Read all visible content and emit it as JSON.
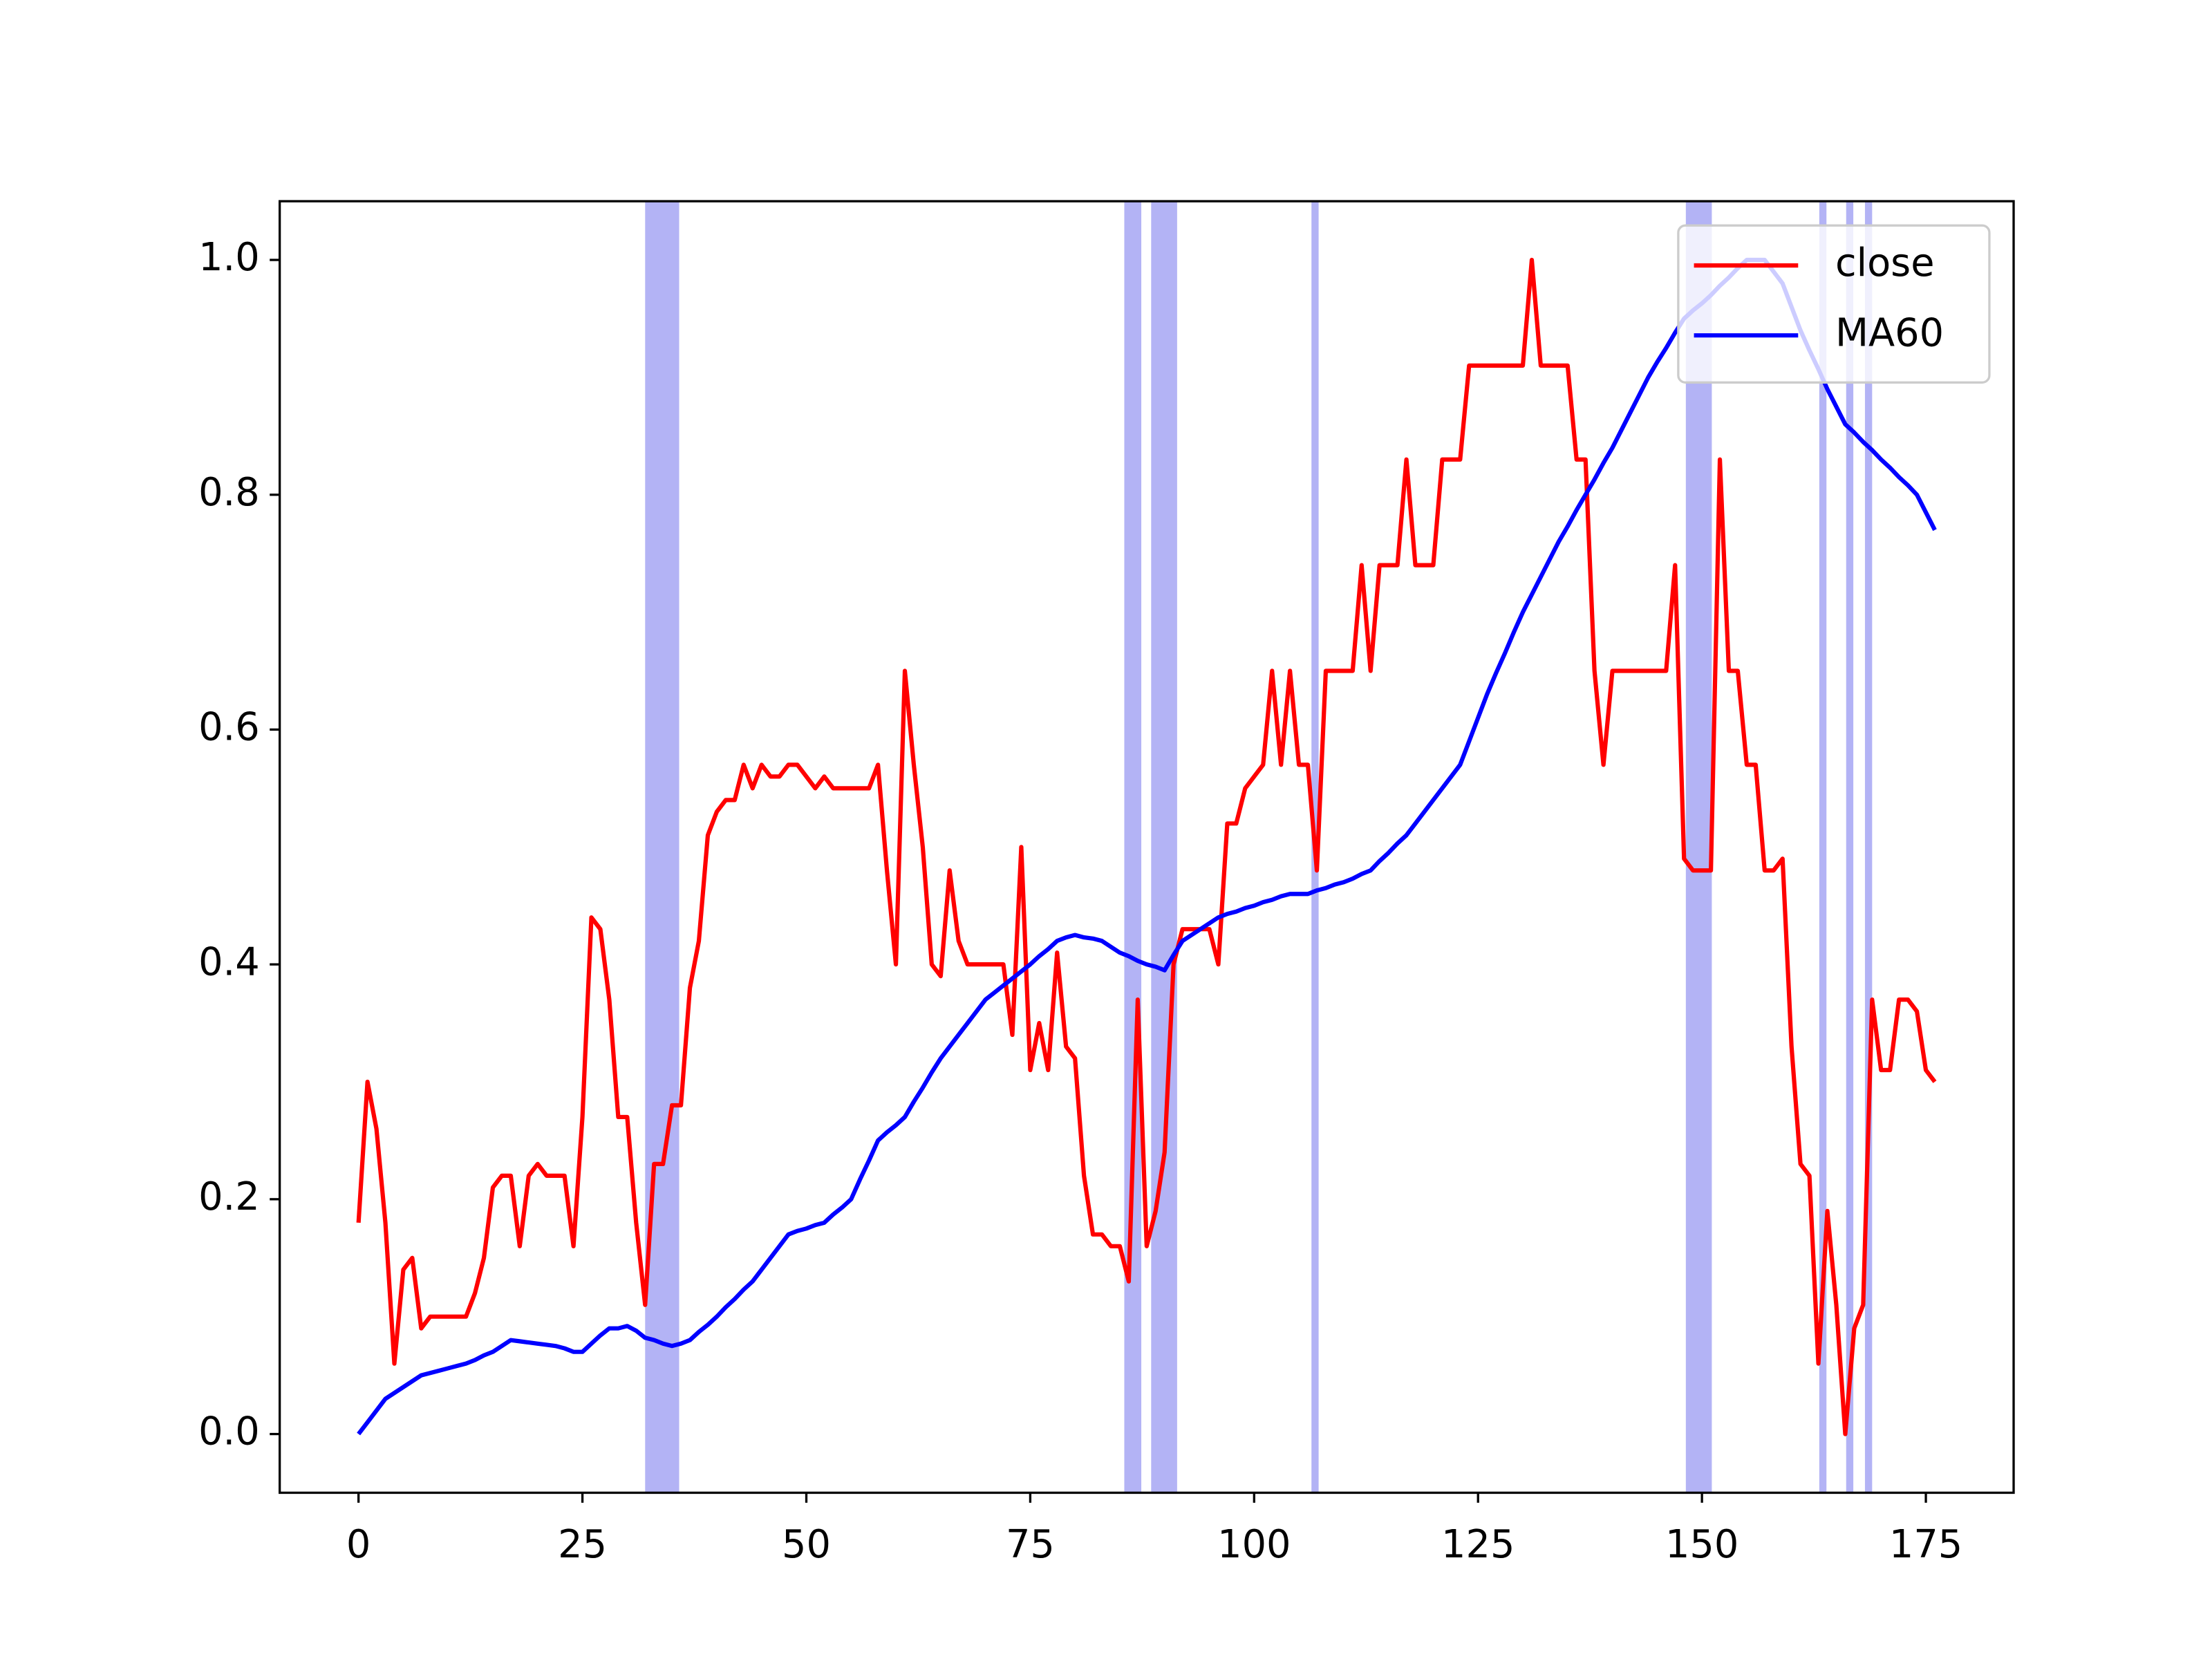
{
  "chart_data": {
    "type": "line",
    "x": [
      0,
      1,
      2,
      3,
      4,
      5,
      6,
      7,
      8,
      9,
      10,
      11,
      12,
      13,
      14,
      15,
      16,
      17,
      18,
      19,
      20,
      21,
      22,
      23,
      24,
      25,
      26,
      27,
      28,
      29,
      30,
      31,
      32,
      33,
      34,
      35,
      36,
      37,
      38,
      39,
      40,
      41,
      42,
      43,
      44,
      45,
      46,
      47,
      48,
      49,
      50,
      51,
      52,
      53,
      54,
      55,
      56,
      57,
      58,
      59,
      60,
      61,
      62,
      63,
      64,
      65,
      66,
      67,
      68,
      69,
      70,
      71,
      72,
      73,
      74,
      75,
      76,
      77,
      78,
      79,
      80,
      81,
      82,
      83,
      84,
      85,
      86,
      87,
      88,
      89,
      90,
      91,
      92,
      93,
      94,
      95,
      96,
      97,
      98,
      99,
      100,
      101,
      102,
      103,
      104,
      105,
      106,
      107,
      108,
      109,
      110,
      111,
      112,
      113,
      114,
      115,
      116,
      117,
      118,
      119,
      120,
      121,
      122,
      123,
      124,
      125,
      126,
      127,
      128,
      129,
      130,
      131,
      132,
      133,
      134,
      135,
      136,
      137,
      138,
      139,
      140,
      141,
      142,
      143,
      144,
      145,
      146,
      147,
      148,
      149,
      150,
      151,
      152,
      153,
      154,
      155,
      156,
      157,
      158,
      159,
      160,
      161,
      162,
      163,
      164,
      165,
      166,
      167,
      168,
      169,
      170,
      171,
      172,
      173,
      174,
      175,
      176
    ],
    "series": [
      {
        "name": "close",
        "color": "#ff0000",
        "values": [
          0.18,
          0.3,
          0.26,
          0.18,
          0.06,
          0.14,
          0.15,
          0.09,
          0.1,
          0.1,
          0.1,
          0.1,
          0.1,
          0.12,
          0.15,
          0.21,
          0.22,
          0.22,
          0.16,
          0.22,
          0.23,
          0.22,
          0.22,
          0.22,
          0.16,
          0.27,
          0.44,
          0.43,
          0.37,
          0.27,
          0.27,
          0.18,
          0.11,
          0.23,
          0.23,
          0.28,
          0.28,
          0.38,
          0.42,
          0.51,
          0.53,
          0.54,
          0.54,
          0.57,
          0.55,
          0.57,
          0.56,
          0.56,
          0.57,
          0.57,
          0.56,
          0.55,
          0.56,
          0.55,
          0.55,
          0.55,
          0.55,
          0.55,
          0.57,
          0.48,
          0.4,
          0.65,
          0.57,
          0.5,
          0.4,
          0.39,
          0.48,
          0.42,
          0.4,
          0.4,
          0.4,
          0.4,
          0.4,
          0.34,
          0.5,
          0.31,
          0.35,
          0.31,
          0.41,
          0.33,
          0.32,
          0.22,
          0.17,
          0.17,
          0.16,
          0.16,
          0.13,
          0.37,
          0.16,
          0.19,
          0.24,
          0.4,
          0.43,
          0.43,
          0.43,
          0.43,
          0.4,
          0.52,
          0.52,
          0.55,
          0.56,
          0.57,
          0.65,
          0.57,
          0.65,
          0.57,
          0.57,
          0.48,
          0.65,
          0.65,
          0.65,
          0.65,
          0.74,
          0.65,
          0.74,
          0.74,
          0.74,
          0.83,
          0.74,
          0.74,
          0.74,
          0.83,
          0.83,
          0.83,
          0.91,
          0.91,
          0.91,
          0.91,
          0.91,
          0.91,
          0.91,
          1.0,
          0.91,
          0.91,
          0.91,
          0.91,
          0.83,
          0.83,
          0.65,
          0.57,
          0.65,
          0.65,
          0.65,
          0.65,
          0.65,
          0.65,
          0.65,
          0.74,
          0.49,
          0.48,
          0.48,
          0.48,
          0.83,
          0.65,
          0.65,
          0.57,
          0.57,
          0.48,
          0.48,
          0.49,
          0.33,
          0.23,
          0.22,
          0.06,
          0.19,
          0.11,
          0.0,
          0.09,
          0.11,
          0.37,
          0.31,
          0.31,
          0.37,
          0.37,
          0.36,
          0.31,
          0.3
        ]
      },
      {
        "name": "MA60",
        "color": "#0000ff",
        "values": [
          0,
          0.01,
          0.02,
          0.03,
          0.035,
          0.04,
          0.045,
          0.05,
          0.052,
          0.054,
          0.056,
          0.058,
          0.06,
          0.063,
          0.067,
          0.07,
          0.075,
          0.08,
          0.079,
          0.078,
          0.077,
          0.076,
          0.075,
          0.073,
          0.07,
          0.07,
          0.077,
          0.084,
          0.09,
          0.09,
          0.092,
          0.088,
          0.082,
          0.08,
          0.077,
          0.075,
          0.077,
          0.08,
          0.087,
          0.093,
          0.1,
          0.108,
          0.115,
          0.123,
          0.13,
          0.14,
          0.15,
          0.16,
          0.17,
          0.173,
          0.175,
          0.178,
          0.18,
          0.187,
          0.193,
          0.2,
          0.217,
          0.233,
          0.25,
          0.257,
          0.263,
          0.27,
          0.283,
          0.295,
          0.308,
          0.32,
          0.33,
          0.34,
          0.35,
          0.36,
          0.37,
          0.376,
          0.382,
          0.388,
          0.394,
          0.4,
          0.407,
          0.413,
          0.42,
          0.423,
          0.425,
          0.423,
          0.422,
          0.42,
          0.415,
          0.41,
          0.407,
          0.403,
          0.4,
          0.398,
          0.395,
          0.408,
          0.42,
          0.425,
          0.43,
          0.435,
          0.44,
          0.443,
          0.445,
          0.448,
          0.45,
          0.453,
          0.455,
          0.458,
          0.46,
          0.46,
          0.46,
          0.463,
          0.465,
          0.468,
          0.47,
          0.473,
          0.477,
          0.48,
          0.488,
          0.495,
          0.503,
          0.51,
          0.52,
          0.53,
          0.54,
          0.55,
          0.56,
          0.57,
          0.59,
          0.61,
          0.63,
          0.648,
          0.665,
          0.683,
          0.7,
          0.715,
          0.73,
          0.745,
          0.76,
          0.773,
          0.787,
          0.8,
          0.813,
          0.827,
          0.84,
          0.855,
          0.87,
          0.885,
          0.9,
          0.913,
          0.925,
          0.938,
          0.95,
          0.957,
          0.963,
          0.97,
          0.978,
          0.985,
          0.993,
          1.0,
          1.0,
          1.0,
          0.99,
          0.98,
          0.96,
          0.94,
          0.923,
          0.907,
          0.89,
          0.875,
          0.86,
          0.853,
          0.845,
          0.838,
          0.83,
          0.823,
          0.815,
          0.808,
          0.8,
          0.785,
          0.77
        ]
      }
    ],
    "spans": [
      [
        32,
        35.8
      ],
      [
        85.5,
        87.4
      ],
      [
        88.5,
        91.4
      ],
      [
        106.4,
        107.2
      ],
      [
        148.2,
        151.1
      ],
      [
        163.1,
        163.9
      ],
      [
        166.1,
        166.9
      ],
      [
        168.2,
        169
      ]
    ],
    "span_color": "#b3b3f5",
    "xlim": [
      -8.8,
      184.8
    ],
    "ylim": [
      -0.05,
      1.05
    ],
    "xticks": [
      0,
      25,
      50,
      75,
      100,
      125,
      150,
      175
    ],
    "yticks": [
      {
        "value": 0,
        "label": "0.0"
      },
      0.2,
      0.4,
      0.6,
      0.8,
      {
        "value": 1,
        "label": "1.0"
      }
    ],
    "legend": "upper right"
  }
}
